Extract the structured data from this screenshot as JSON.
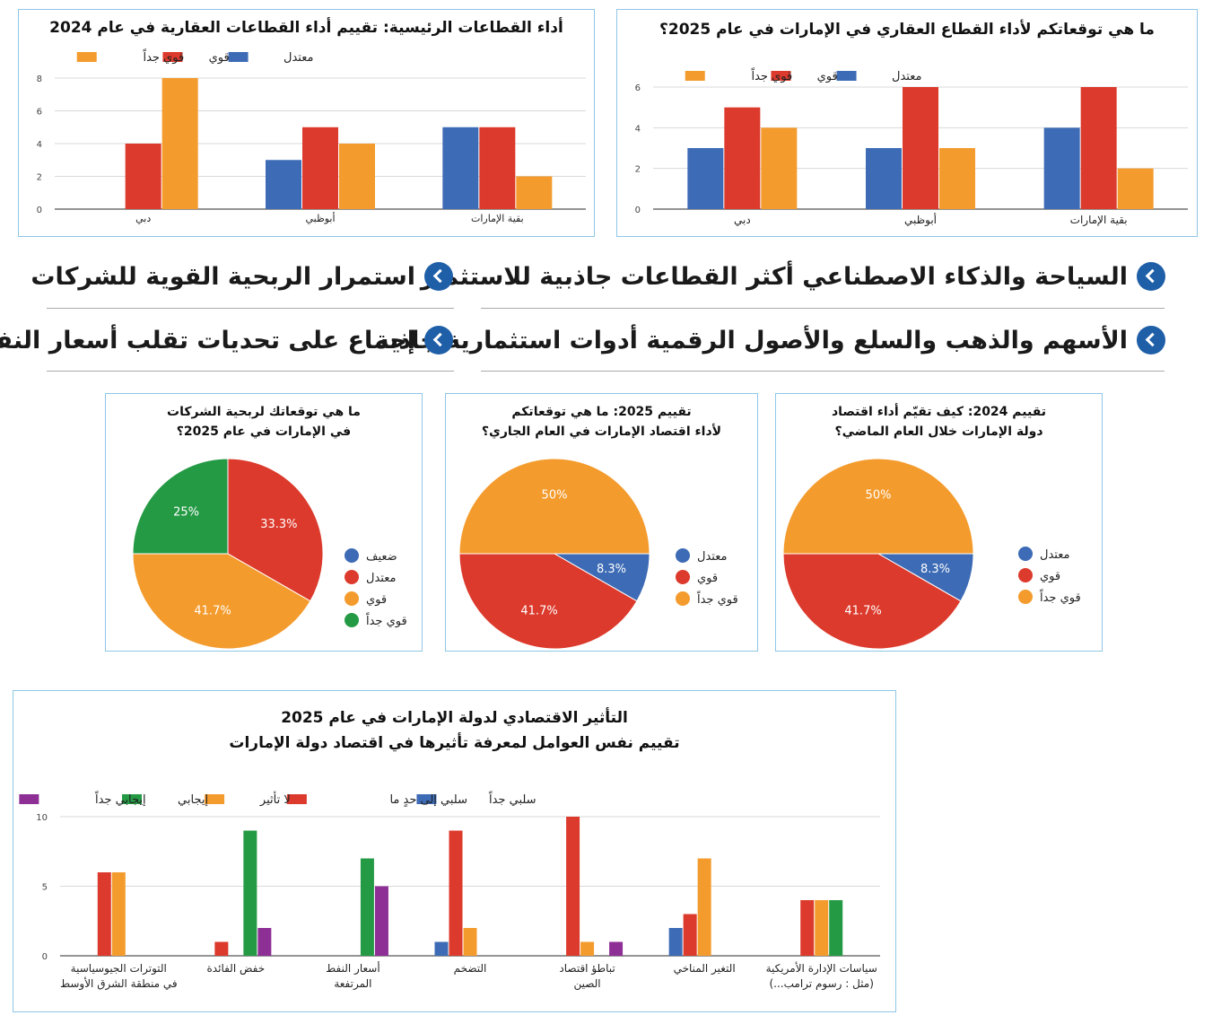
{
  "colors": {
    "blue": "#3d6bb5",
    "red": "#dc3a2c",
    "orange": "#f49b2d",
    "green": "#259a45",
    "purple": "#8e2f96"
  },
  "headlines": [
    "السياحة والذكاء الاصطناعي أكثر القطاعات جاذبية للاستثمار",
    "استمرار الربحية القوية للشركات",
    "الأسهم والذهب والسلع والأصول الرقمية أدوات استثمارية جاذبة",
    "إجماع على تحديات تقلب أسعار النفط"
  ],
  "chart_data": [
    {
      "id": "sectors-2024",
      "type": "bar",
      "title": "أداء القطاعات الرئيسية: تقييم أداء القطاعات العقارية في عام 2024",
      "categories": [
        "دبي",
        "أبوظبي",
        "بقية الإمارات"
      ],
      "series": [
        {
          "name": "معتدل",
          "color": "#3d6bb5",
          "values": [
            0,
            3,
            5
          ]
        },
        {
          "name": "قوي",
          "color": "#dc3a2c",
          "values": [
            4,
            5,
            5
          ]
        },
        {
          "name": "قوي جداً",
          "color": "#f49b2d",
          "values": [
            8,
            4,
            2
          ]
        }
      ],
      "ylim": [
        0,
        8
      ],
      "yticks": [
        0,
        2,
        4,
        6,
        8
      ],
      "grid": true,
      "legend": "top-right"
    },
    {
      "id": "sectors-2025",
      "type": "bar",
      "title": "ما هي توقعاتكم لأداء القطاع العقاري في الإمارات في عام 2025؟",
      "categories": [
        "دبي",
        "أبوظبي",
        "بقية الإمارات"
      ],
      "series": [
        {
          "name": "معتدل",
          "color": "#3d6bb5",
          "values": [
            3,
            3,
            4
          ]
        },
        {
          "name": "قوي",
          "color": "#dc3a2c",
          "values": [
            5,
            6,
            6
          ]
        },
        {
          "name": "قوي جداً",
          "color": "#f49b2d",
          "values": [
            4,
            3,
            2
          ]
        }
      ],
      "ylim": [
        0,
        6
      ],
      "yticks": [
        0,
        2,
        4,
        6
      ],
      "grid": true,
      "legend": "top-right"
    },
    {
      "id": "profit-2025",
      "type": "pie",
      "title": [
        "ما هي توقعاتك لربحية الشركات",
        "في الإمارات في عام 2025؟"
      ],
      "slices": [
        {
          "label": "ضعيف",
          "value": 0,
          "color": "#3d6bb5",
          "text": ""
        },
        {
          "label": "معتدل",
          "value": 33.3,
          "color": "#dc3a2c",
          "text": "33.3%"
        },
        {
          "label": "قوي",
          "value": 41.7,
          "color": "#f49b2d",
          "text": "41.7%"
        },
        {
          "label": "قوي جداً",
          "value": 25,
          "color": "#259a45",
          "text": "25%"
        }
      ]
    },
    {
      "id": "economy-2025",
      "type": "pie",
      "title": [
        "تقييم 2025: ما هي توقعاتكم",
        "لأداء اقتصاد الإمارات في العام الجاري؟"
      ],
      "slices": [
        {
          "label": "معتدل",
          "value": 8.3,
          "color": "#3d6bb5",
          "text": "8.3%"
        },
        {
          "label": "قوي",
          "value": 41.7,
          "color": "#dc3a2c",
          "text": "41.7%"
        },
        {
          "label": "قوي جداً",
          "value": 50,
          "color": "#f49b2d",
          "text": "50%"
        }
      ]
    },
    {
      "id": "economy-2024",
      "type": "pie",
      "title": [
        "تقييم 2024: كيف تقيّم أداء اقتصاد",
        "دولة الإمارات خلال العام الماضي؟"
      ],
      "slices": [
        {
          "label": "معتدل",
          "value": 8.3,
          "color": "#3d6bb5",
          "text": "8.3%"
        },
        {
          "label": "قوي",
          "value": 41.7,
          "color": "#dc3a2c",
          "text": "41.7%"
        },
        {
          "label": "قوي جداً",
          "value": 50,
          "color": "#f49b2d",
          "text": "50%"
        }
      ]
    },
    {
      "id": "impact-2025",
      "type": "bar",
      "title": [
        "التأثير الاقتصادي لدولة الإمارات في عام 2025",
        "تقييم نفس العوامل لمعرفة تأثيرها في اقتصاد دولة الإمارات"
      ],
      "categories": [
        [
          "التوترات الجيوسياسية",
          "في منطقة الشرق الأوسط"
        ],
        [
          "خفض الفائدة"
        ],
        [
          "أسعار النفط",
          "المرتفعة"
        ],
        [
          "التضخم"
        ],
        [
          "تباطؤ اقتصاد",
          "الصين"
        ],
        [
          "التغير المناخي"
        ],
        [
          "سياسات الإدارة الأمريكية",
          "(مثل : رسوم ترامب...)"
        ]
      ],
      "series": [
        {
          "name": "سلبي جداً",
          "color": "#3d6bb5",
          "values": [
            0,
            0,
            0,
            1,
            0,
            2,
            0
          ]
        },
        {
          "name": "سلبي إلى حدٍ ما",
          "color": "#dc3a2c",
          "values": [
            6,
            1,
            0,
            9,
            10,
            3,
            4
          ]
        },
        {
          "name": "لا تأثير",
          "color": "#f49b2d",
          "values": [
            6,
            0,
            0,
            2,
            1,
            7,
            4
          ]
        },
        {
          "name": "إيجابي",
          "color": "#259a45",
          "values": [
            0,
            9,
            7,
            0,
            0,
            0,
            4
          ]
        },
        {
          "name": "إيجابي جداً",
          "color": "#8e2f96",
          "values": [
            0,
            2,
            5,
            0,
            1,
            0,
            0
          ]
        }
      ],
      "ylim": [
        0,
        10
      ],
      "yticks": [
        0,
        5,
        10
      ],
      "grid": true,
      "legend": "top-right"
    }
  ]
}
